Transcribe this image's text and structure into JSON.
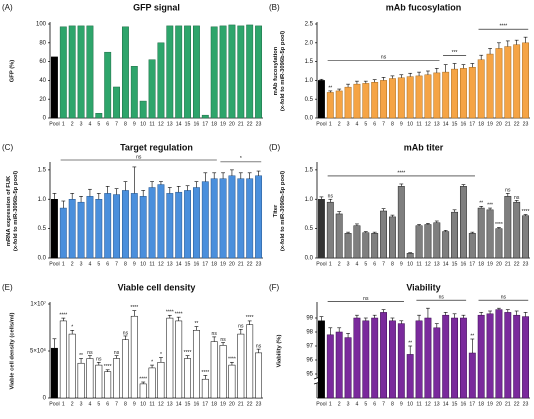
{
  "chart_data": [
    {
      "type": "bar",
      "panel": "(A)",
      "title": "GFP signal",
      "ylabel": [
        "GFP (%)"
      ],
      "categories": [
        "Pool",
        "1",
        "2",
        "3",
        "4",
        "5",
        "6",
        "7",
        "8",
        "9",
        "10",
        "11",
        "12",
        "13",
        "14",
        "15",
        "16",
        "17",
        "18",
        "19",
        "20",
        "21",
        "22",
        "23"
      ],
      "values": [
        65,
        97,
        98,
        98,
        98,
        5,
        70,
        33,
        97,
        55,
        18,
        62,
        80,
        98,
        98,
        98,
        98,
        3,
        97,
        98,
        99,
        98,
        99,
        98
      ],
      "color": "#2ea56b",
      "first_color": "#000000",
      "outline": "#1c6b44",
      "ylim": [
        0,
        100
      ],
      "yticks": [
        0,
        20,
        40,
        60,
        80,
        100
      ]
    },
    {
      "type": "bar",
      "panel": "(B)",
      "title": "mAb fucosylation",
      "ylabel": [
        "mAb fucosylation",
        "(x-fold to miR-3096b-5p pool)"
      ],
      "categories": [
        "Pool",
        "1",
        "2",
        "3",
        "4",
        "5",
        "6",
        "7",
        "8",
        "9",
        "10",
        "11",
        "12",
        "13",
        "14",
        "15",
        "16",
        "17",
        "18",
        "19",
        "20",
        "21",
        "22",
        "23"
      ],
      "values": [
        1.0,
        0.68,
        0.72,
        0.82,
        0.9,
        0.92,
        0.95,
        1.0,
        1.05,
        1.07,
        1.1,
        1.12,
        1.15,
        1.2,
        1.22,
        1.3,
        1.32,
        1.35,
        1.55,
        1.7,
        1.85,
        1.9,
        1.95,
        2.0
      ],
      "errors": [
        0.03,
        0.04,
        0.05,
        0.08,
        0.08,
        0.06,
        0.07,
        0.08,
        0.07,
        0.08,
        0.09,
        0.1,
        0.1,
        0.12,
        0.2,
        0.15,
        0.1,
        0.1,
        0.12,
        0.15,
        0.15,
        0.15,
        0.12,
        0.15
      ],
      "sig": [
        null,
        "**",
        null,
        null,
        null,
        null,
        null,
        null,
        null,
        null,
        null,
        null,
        null,
        null,
        null,
        null,
        null,
        null,
        null,
        null,
        null,
        null,
        null,
        null
      ],
      "brackets": [
        {
          "label": "ns",
          "start": "1",
          "end": "13"
        },
        {
          "label": "***",
          "start": "14",
          "end": "16"
        },
        {
          "label": "****",
          "start": "18",
          "end": "23"
        }
      ],
      "color": "#f5a445",
      "first_color": "#000000",
      "outline": "#a86a1d",
      "ylim": [
        0,
        2.5
      ],
      "yticks": [
        {
          "value": 0,
          "label": "0.0"
        },
        0.5,
        {
          "value": 1,
          "label": "1.0"
        },
        1.5,
        {
          "value": 2,
          "label": "2.0"
        },
        2.5
      ]
    },
    {
      "type": "bar",
      "panel": "(C)",
      "title": "Target regulation",
      "ylabel": [
        "mRNA expression of FUK",
        "(x-fold to miR-3096b-5p pool)"
      ],
      "categories": [
        "Pool",
        "1",
        "2",
        "3",
        "4",
        "5",
        "6",
        "7",
        "8",
        "9",
        "10",
        "11",
        "12",
        "13",
        "14",
        "15",
        "16",
        "17",
        "18",
        "19",
        "20",
        "21",
        "22",
        "23"
      ],
      "values": [
        1.0,
        0.85,
        1.0,
        0.95,
        1.05,
        1.0,
        1.1,
        1.08,
        1.15,
        1.1,
        1.05,
        1.2,
        1.25,
        1.1,
        1.12,
        1.15,
        1.2,
        1.3,
        1.35,
        1.35,
        1.4,
        1.35,
        1.35,
        1.4
      ],
      "errors": [
        0.1,
        0.12,
        0.1,
        0.1,
        0.12,
        0.1,
        0.12,
        0.1,
        0.15,
        0.45,
        0.1,
        0.1,
        0.05,
        0.1,
        0.1,
        0.08,
        0.1,
        0.15,
        0.1,
        0.1,
        0.1,
        0.1,
        0.1,
        0.08
      ],
      "brackets": [
        {
          "label": "ns",
          "start": "1",
          "end": "18"
        },
        {
          "label": "*",
          "start": "19",
          "end": "23"
        }
      ],
      "color": "#4a8fdc",
      "first_color": "#000000",
      "outline": "#27568c",
      "ylim": [
        0,
        1.6
      ],
      "yticks": [
        {
          "value": 0,
          "label": "0.0"
        },
        0.5,
        {
          "value": 1,
          "label": "1.0"
        },
        1.5
      ]
    },
    {
      "type": "bar",
      "panel": "(D)",
      "title": "mAb titer",
      "ylabel": [
        "Titer",
        "(x-fold to miR-3096b-5p pool)"
      ],
      "categories": [
        "Pool",
        "1",
        "2",
        "3",
        "4",
        "5",
        "6",
        "7",
        "8",
        "9",
        "10",
        "11",
        "12",
        "13",
        "14",
        "15",
        "16",
        "17",
        "18",
        "19",
        "20",
        "21",
        "22",
        "23"
      ],
      "values": [
        1.0,
        0.95,
        0.75,
        0.42,
        0.55,
        0.43,
        0.42,
        0.8,
        0.7,
        1.22,
        0.08,
        0.55,
        0.57,
        0.6,
        0.45,
        0.78,
        1.22,
        0.42,
        0.85,
        0.82,
        0.5,
        1.05,
        0.95,
        0.72
      ],
      "errors": [
        0.04,
        0.05,
        0.04,
        0.02,
        0.03,
        0.02,
        0.02,
        0.04,
        0.03,
        0.04,
        0.01,
        0.02,
        0.02,
        0.03,
        0.02,
        0.04,
        0.03,
        0.02,
        0.03,
        0.03,
        0.02,
        0.05,
        0.03,
        0.02
      ],
      "sig": [
        null,
        "ns",
        null,
        null,
        null,
        null,
        null,
        null,
        null,
        null,
        null,
        null,
        null,
        null,
        null,
        null,
        null,
        null,
        "**",
        "***",
        "****",
        "ns",
        "ns",
        "****"
      ],
      "brackets": [
        {
          "label": "****",
          "start": "1",
          "end": "17"
        }
      ],
      "color": "#7f7f7f",
      "first_color": "#333333",
      "outline": "#222222",
      "ylim": [
        0,
        1.6
      ],
      "yticks": [
        {
          "value": 0,
          "label": "0.0"
        },
        0.5,
        {
          "value": 1,
          "label": "1.0"
        },
        1.5
      ]
    },
    {
      "type": "bar",
      "panel": "(E)",
      "title": "Viable cell density",
      "ylabel": [
        "Viable cell density (cells/ml)"
      ],
      "categories": [
        "Pool",
        "1",
        "2",
        "3",
        "4",
        "5",
        "6",
        "7",
        "8",
        "9",
        "10",
        "11",
        "12",
        "13",
        "14",
        "15",
        "16",
        "17",
        "18",
        "19",
        "20",
        "21",
        "22",
        "23"
      ],
      "values": [
        5300000,
        8200000,
        6800000,
        3700000,
        4200000,
        3500000,
        2800000,
        4200000,
        6200000,
        8700000,
        1500000,
        3200000,
        3800000,
        8500000,
        8200000,
        4200000,
        7200000,
        2000000,
        6000000,
        5600000,
        3500000,
        6800000,
        7800000,
        4800000
      ],
      "errors": [
        1000000,
        300000,
        400000,
        500000,
        300000,
        300000,
        200000,
        300000,
        400000,
        600000,
        200000,
        300000,
        500000,
        300000,
        400000,
        300000,
        400000,
        400000,
        500000,
        300000,
        300000,
        500000,
        400000,
        400000
      ],
      "sig": [
        null,
        "****",
        "*",
        "**",
        "ns",
        "ns",
        "****",
        "ns",
        "ns",
        "****",
        "****",
        "*",
        "*",
        "****",
        "****",
        "****",
        "**",
        "****",
        "ns",
        "ns",
        "****",
        "ns",
        "****",
        "ns"
      ],
      "color": "#ffffff",
      "first_color": "#000000",
      "outline": "#000000",
      "ylim": [
        0,
        10000000
      ],
      "yticks": [
        0,
        {
          "value": 5000000,
          "label": "5×10⁶"
        },
        {
          "value": 10000000,
          "label": "1×10⁷"
        }
      ]
    },
    {
      "type": "bar",
      "panel": "(F)",
      "title": "Viability",
      "ylabel": [
        "Viability (%)"
      ],
      "categories": [
        "Pool",
        "1",
        "2",
        "3",
        "4",
        "5",
        "6",
        "7",
        "8",
        "9",
        "10",
        "11",
        "12",
        "13",
        "14",
        "15",
        "16",
        "17",
        "18",
        "19",
        "20",
        "21",
        "22",
        "23"
      ],
      "values": [
        98.8,
        97.8,
        98.0,
        97.6,
        99.0,
        98.8,
        99.0,
        99.4,
        98.8,
        98.6,
        96.4,
        98.8,
        99.0,
        98.3,
        99.2,
        99.0,
        99.0,
        96.5,
        99.2,
        99.3,
        99.6,
        99.4,
        99.2,
        99.1
      ],
      "errors": [
        0.3,
        0.5,
        0.3,
        0.3,
        0.2,
        0.2,
        0.2,
        0.2,
        0.2,
        0.2,
        0.6,
        0.4,
        0.7,
        0.3,
        0.2,
        0.3,
        0.2,
        1.0,
        0.2,
        0.2,
        0.1,
        0.2,
        0.3,
        0.3
      ],
      "sig": [
        null,
        null,
        null,
        null,
        null,
        null,
        null,
        null,
        null,
        null,
        "**",
        null,
        null,
        null,
        null,
        null,
        null,
        "**",
        null,
        null,
        null,
        null,
        null,
        null
      ],
      "brackets": [
        {
          "label": "ns",
          "start": "1",
          "end": "9"
        },
        {
          "label": "ns",
          "start": "11",
          "end": "16"
        },
        {
          "label": "ns",
          "start": "18",
          "end": "23"
        }
      ],
      "color": "#7a2a9c",
      "first_color": "#000000",
      "outline": "#3b0d50",
      "broken_axis": true,
      "ylim": [
        95,
        100
      ],
      "yticks": [
        95,
        96,
        97,
        98,
        99
      ]
    }
  ]
}
